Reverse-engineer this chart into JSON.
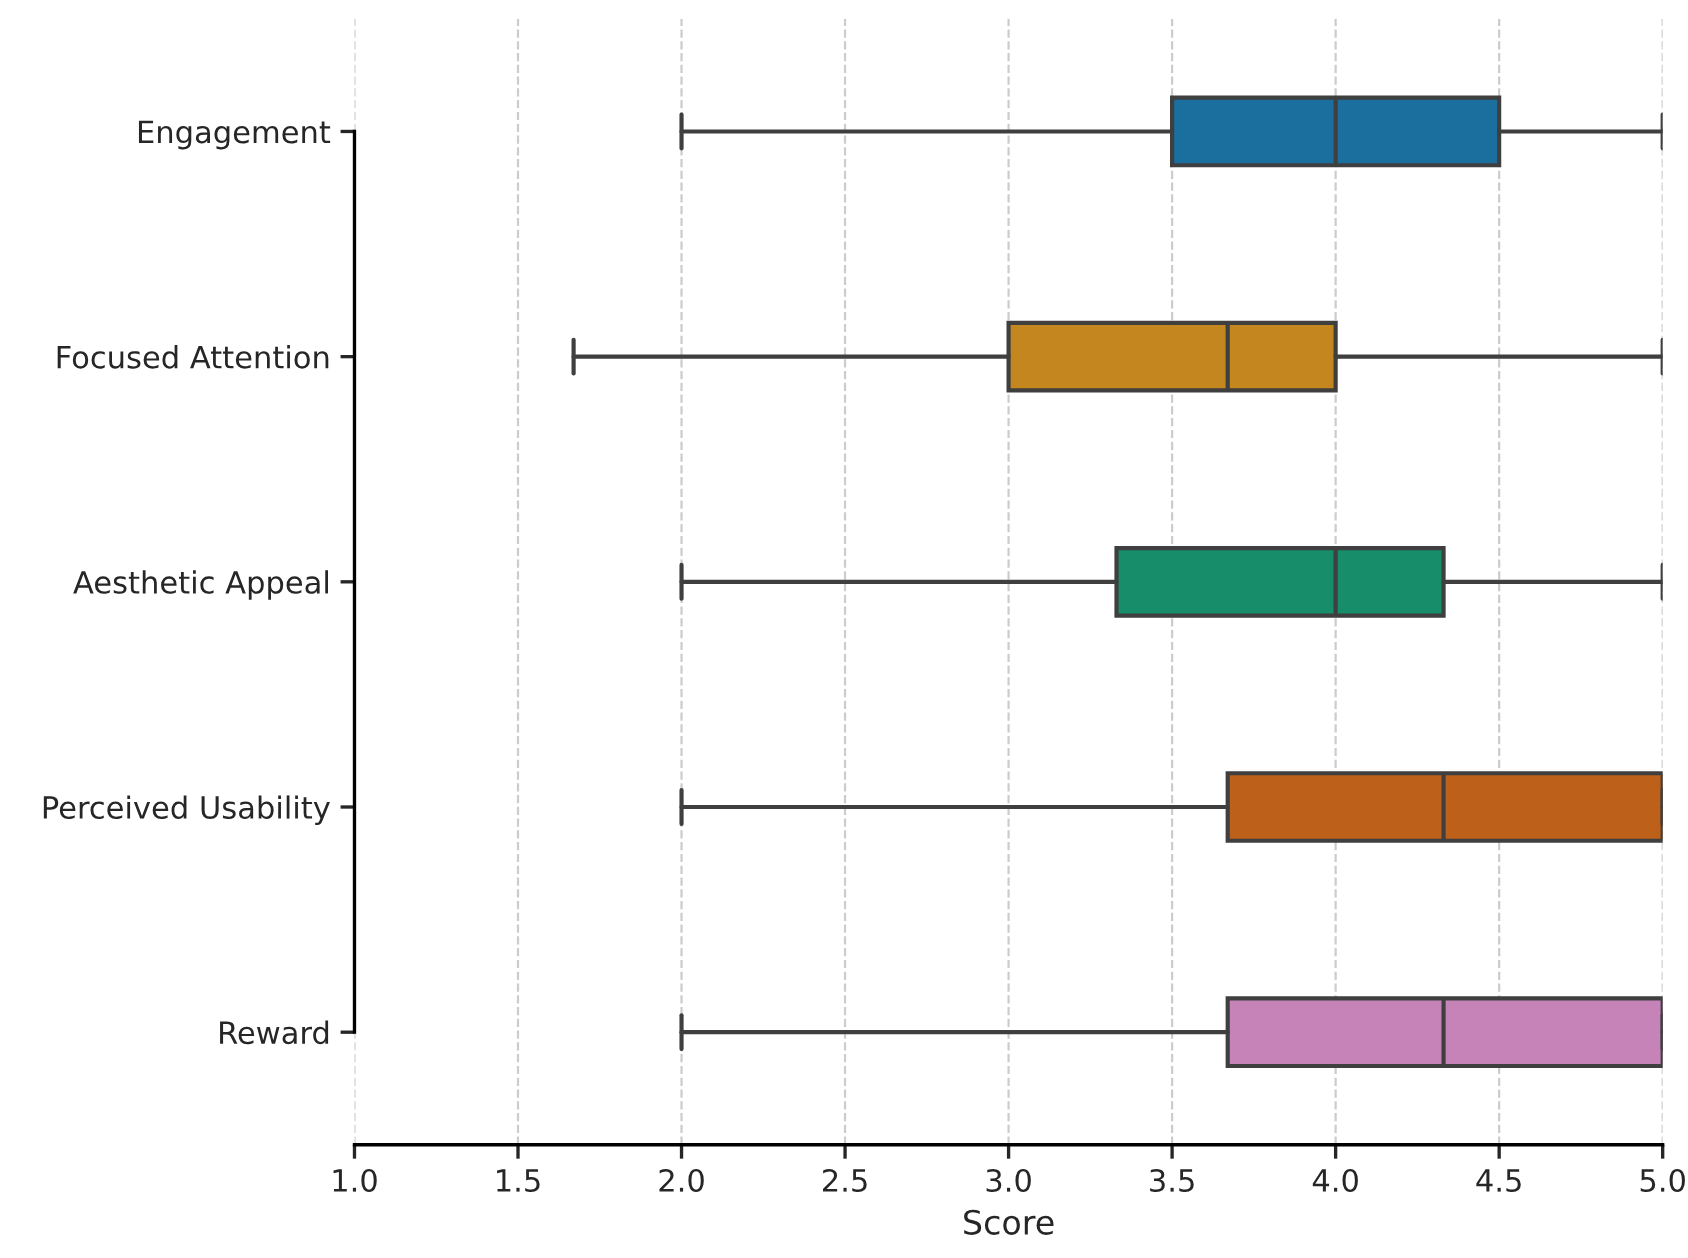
{
  "chart_data": {
    "type": "box",
    "orientation": "horizontal",
    "xlabel": "Score",
    "categories": [
      "Engagement",
      "Focused Attention",
      "Aesthetic Appeal",
      "Perceived Usability",
      "Reward"
    ],
    "boxes": [
      {
        "low": 2,
        "q1": 3.5,
        "median": 4,
        "q3": 4.5,
        "high": 5
      },
      {
        "low": 1.67,
        "q1": 3,
        "median": 3.67,
        "q3": 4,
        "high": 5
      },
      {
        "low": 2,
        "q1": 3.33,
        "median": 4,
        "q3": 4.33,
        "high": 5
      },
      {
        "low": 2,
        "q1": 3.67,
        "median": 4.33,
        "q3": 5,
        "high": 5
      },
      {
        "low": 2,
        "q1": 3.67,
        "median": 4.33,
        "q3": 5,
        "high": 5
      }
    ],
    "colors": [
      "#1a6f9f",
      "#c4861f",
      "#178d6a",
      "#bd611a",
      "#c583b8"
    ],
    "xlim": [
      1,
      5
    ],
    "xticks": [
      {
        "value": 1,
        "label": "1.0"
      },
      {
        "value": 1.5,
        "label": "1.5"
      },
      {
        "value": 2,
        "label": "2.0"
      },
      {
        "value": 2.5,
        "label": "2.5"
      },
      {
        "value": 3,
        "label": "3.0"
      },
      {
        "value": 3.5,
        "label": "3.5"
      },
      {
        "value": 4,
        "label": "4.0"
      },
      {
        "value": 4.5,
        "label": "4.5"
      },
      {
        "value": 5,
        "label": "5.0"
      }
    ],
    "grid": "x"
  }
}
